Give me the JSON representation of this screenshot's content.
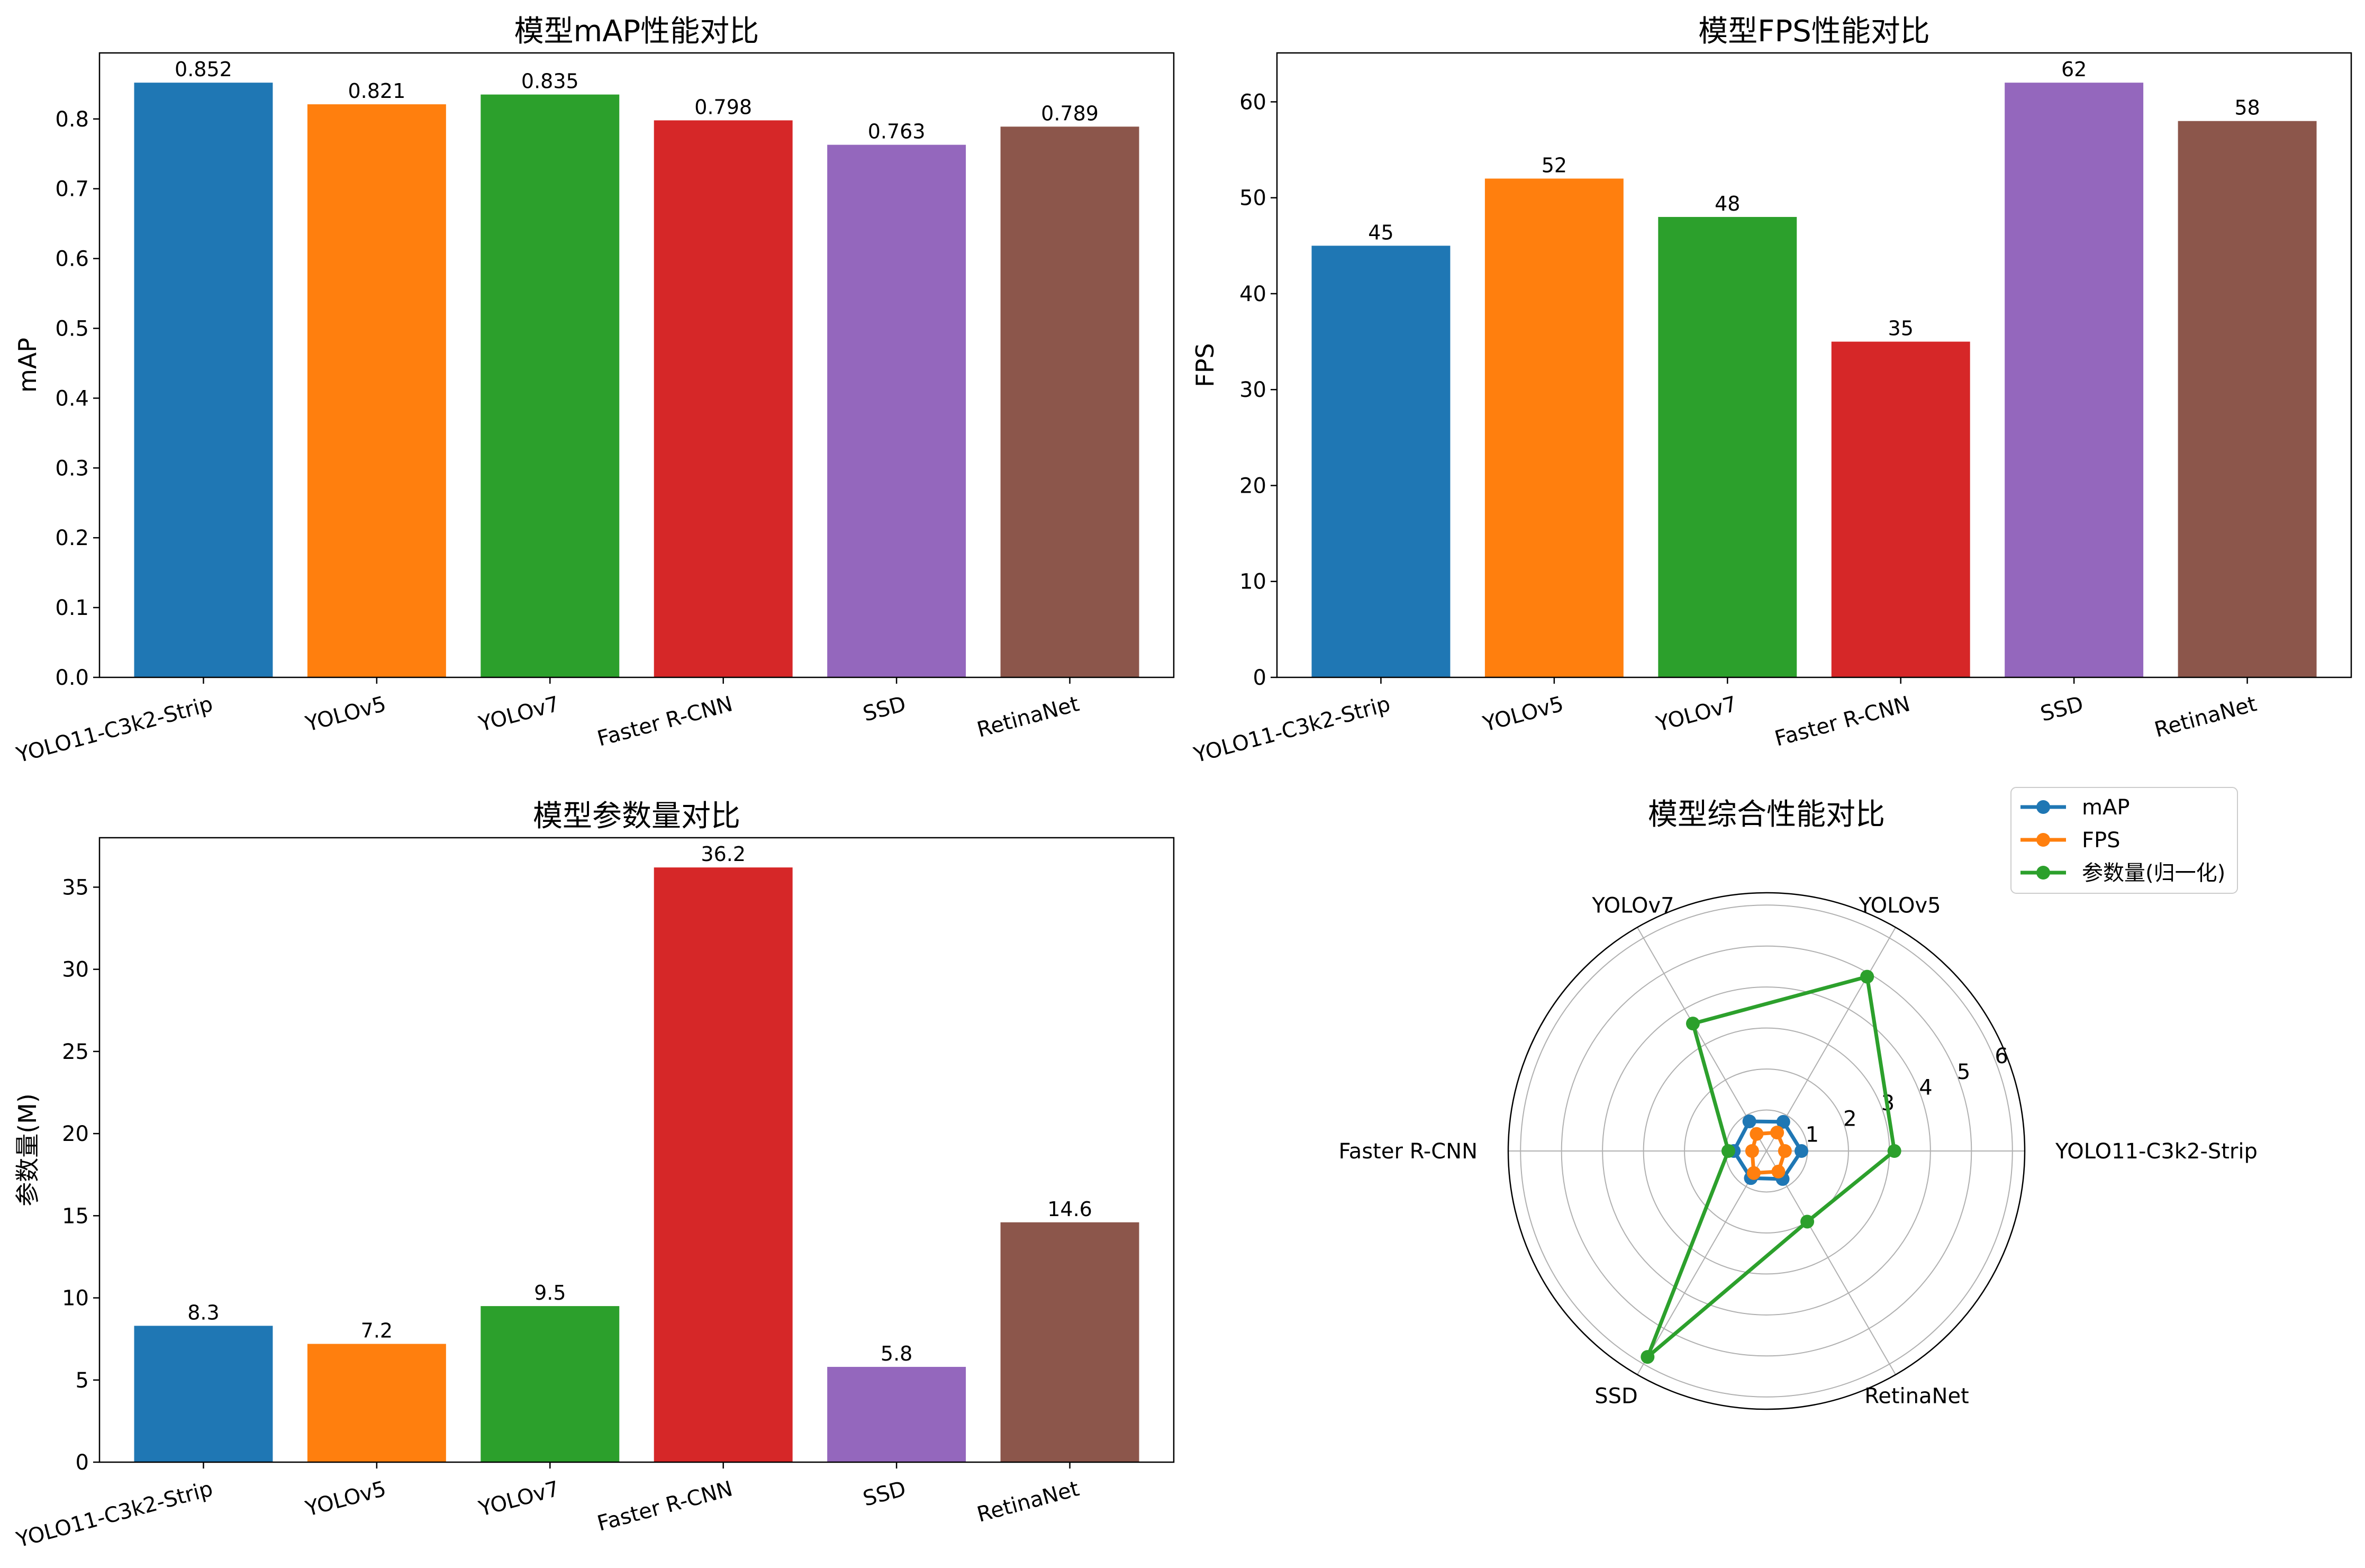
{
  "chart_data": [
    {
      "type": "bar",
      "title": "模型mAP性能对比",
      "xlabel": "",
      "ylabel": "mAP",
      "categories": [
        "YOLO11-C3k2-Strip",
        "YOLOv5",
        "YOLOv7",
        "Faster R-CNN",
        "SSD",
        "RetinaNet"
      ],
      "values": [
        0.852,
        0.821,
        0.835,
        0.798,
        0.763,
        0.789
      ],
      "value_labels": [
        "0.852",
        "0.821",
        "0.835",
        "0.798",
        "0.763",
        "0.789"
      ],
      "colors": [
        "#1f77b4",
        "#ff7f0e",
        "#2ca02c",
        "#d62728",
        "#9467bd",
        "#8c564b"
      ],
      "ylim": [
        0,
        0.8946
      ],
      "yticks": [
        0.0,
        0.1,
        0.2,
        0.3,
        0.4,
        0.5,
        0.6,
        0.7,
        0.8
      ],
      "ytick_labels": [
        "0.0",
        "0.1",
        "0.2",
        "0.3",
        "0.4",
        "0.5",
        "0.6",
        "0.7",
        "0.8"
      ]
    },
    {
      "type": "bar",
      "title": "模型FPS性能对比",
      "xlabel": "",
      "ylabel": "FPS",
      "categories": [
        "YOLO11-C3k2-Strip",
        "YOLOv5",
        "YOLOv7",
        "Faster R-CNN",
        "SSD",
        "RetinaNet"
      ],
      "values": [
        45,
        52,
        48,
        35,
        62,
        58
      ],
      "value_labels": [
        "45",
        "52",
        "48",
        "35",
        "62",
        "58"
      ],
      "colors": [
        "#1f77b4",
        "#ff7f0e",
        "#2ca02c",
        "#d62728",
        "#9467bd",
        "#8c564b"
      ],
      "ylim": [
        0,
        65.1
      ],
      "yticks": [
        0,
        10,
        20,
        30,
        40,
        50,
        60
      ],
      "ytick_labels": [
        "0",
        "10",
        "20",
        "30",
        "40",
        "50",
        "60"
      ]
    },
    {
      "type": "bar",
      "title": "模型参数量对比",
      "xlabel": "",
      "ylabel": "参数量(M)",
      "categories": [
        "YOLO11-C3k2-Strip",
        "YOLOv5",
        "YOLOv7",
        "Faster R-CNN",
        "SSD",
        "RetinaNet"
      ],
      "values": [
        8.3,
        7.2,
        9.5,
        36.2,
        5.8,
        14.6
      ],
      "value_labels": [
        "8.3",
        "7.2",
        "9.5",
        "36.2",
        "5.8",
        "14.6"
      ],
      "colors": [
        "#1f77b4",
        "#ff7f0e",
        "#2ca02c",
        "#d62728",
        "#9467bd",
        "#8c564b"
      ],
      "ylim": [
        0,
        38.01
      ],
      "yticks": [
        0,
        5,
        10,
        15,
        20,
        25,
        30,
        35
      ],
      "ytick_labels": [
        "0",
        "5",
        "10",
        "15",
        "20",
        "25",
        "30",
        "35"
      ]
    },
    {
      "type": "radar",
      "title": "模型综合性能对比",
      "categories": [
        "YOLO11-C3k2-Strip",
        "YOLOv5",
        "YOLOv7",
        "Faster R-CNN",
        "SSD",
        "RetinaNet"
      ],
      "rlim": [
        0,
        6.3
      ],
      "rticks": [
        1,
        2,
        3,
        4,
        5,
        6
      ],
      "rtick_labels": [
        "1",
        "2",
        "3",
        "4",
        "5",
        "6"
      ],
      "legend_position": "top-right",
      "series": [
        {
          "name": "mAP",
          "color": "#1f77b4",
          "values": [
            0.852,
            0.821,
            0.835,
            0.798,
            0.763,
            0.789
          ]
        },
        {
          "name": "FPS",
          "color": "#ff7f0e",
          "values": [
            0.45,
            0.52,
            0.48,
            0.35,
            0.62,
            0.58
          ]
        },
        {
          "name": "参数量(归一化)",
          "color": "#2ca02c",
          "values": [
            3.12,
            4.91,
            3.59,
            0.93,
            5.8,
            1.99
          ]
        }
      ]
    }
  ]
}
